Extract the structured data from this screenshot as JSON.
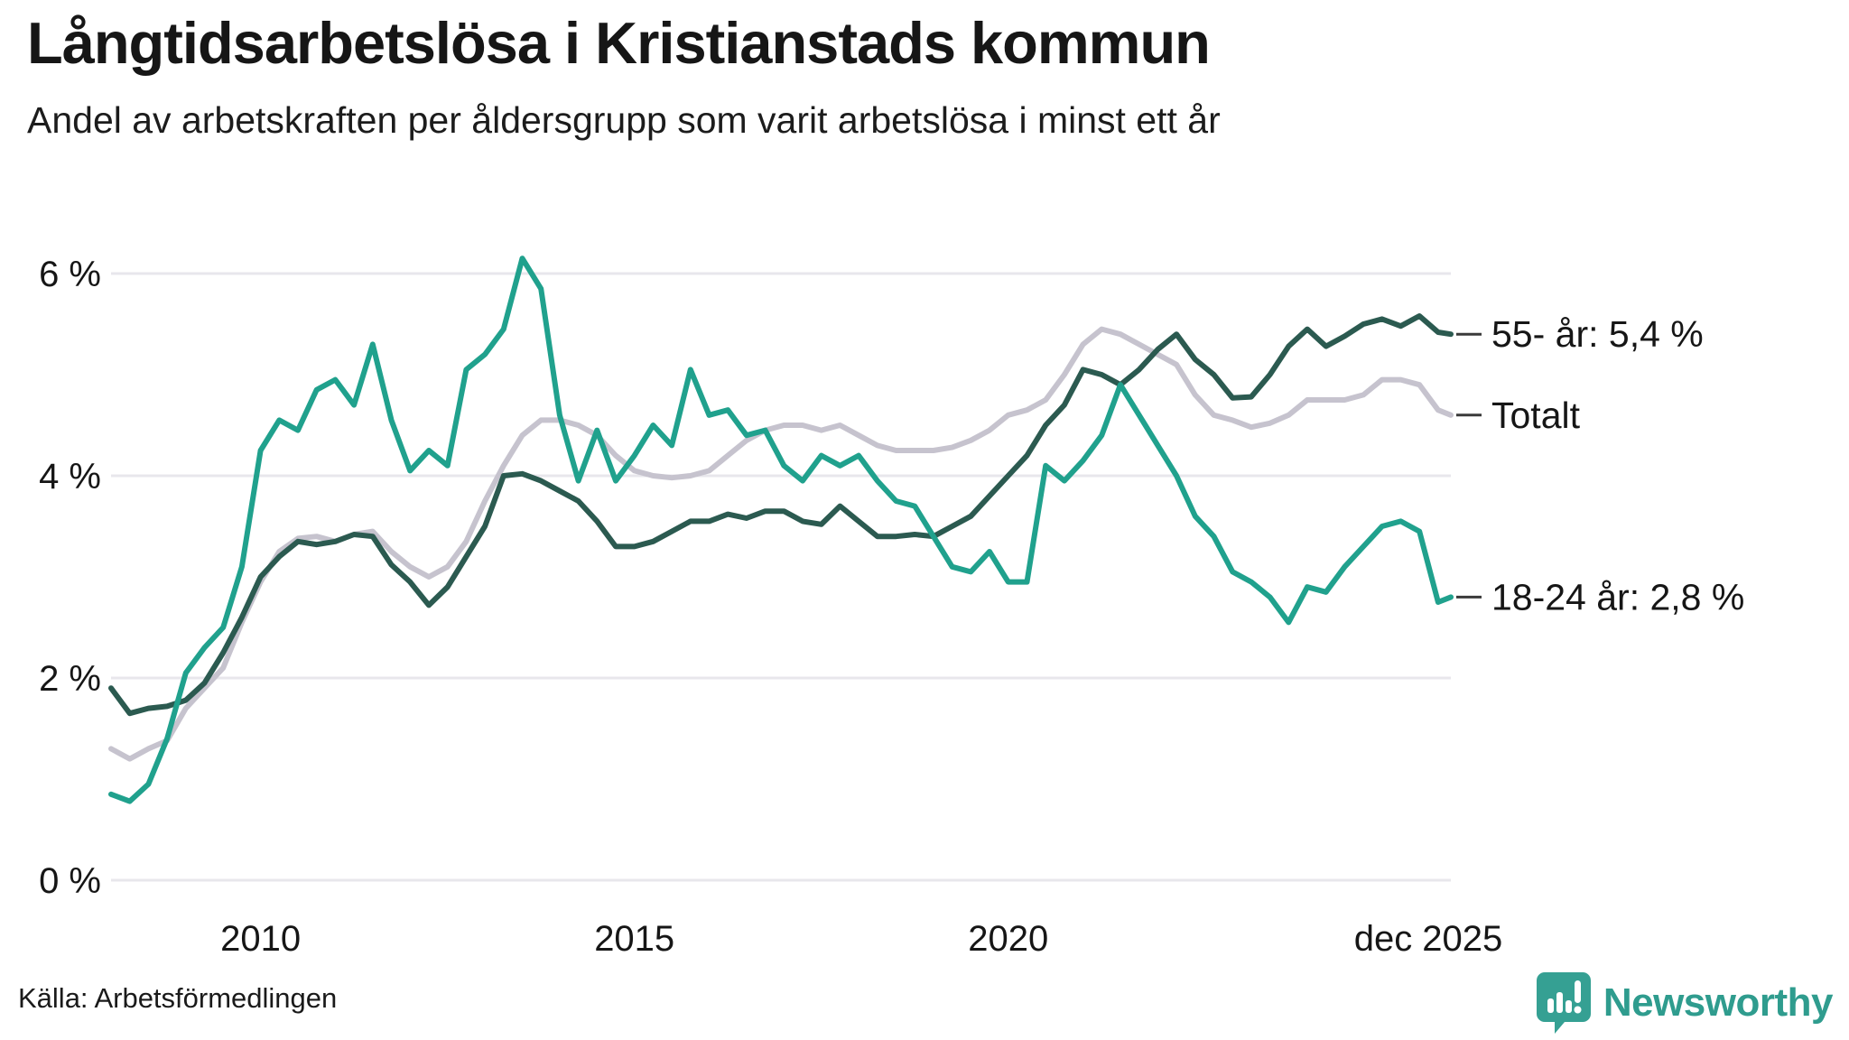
{
  "header": {
    "title": "Långtidsarbetslösa i Kristianstads kommun",
    "subtitle": "Andel av arbetskraften per åldersgrupp som varit arbetslösa i minst ett år"
  },
  "footer": {
    "source": "Källa: Arbetsförmedlingen",
    "brand": "Newsworthy"
  },
  "colors": {
    "teal": "#20a18d",
    "dark_green": "#2b5a50",
    "gray": "#c6c3ce",
    "gridline": "#e8e7ec",
    "text": "#161616",
    "brand_teal": "#2f9c8e",
    "bubble_teal": "#35a093"
  },
  "chart_data": {
    "type": "line",
    "title": "Långtidsarbetslösa i Kristianstads kommun",
    "subtitle": "Andel av arbetskraften per åldersgrupp som varit arbetslösa i minst ett år",
    "xlabel": "",
    "ylabel": "",
    "ylim": [
      0,
      6.5
    ],
    "xlim": [
      2008.0,
      2025.92
    ],
    "grid": "horizontal",
    "legend_position": "right-annotations",
    "x_unit": "year (monthly data, jan 2008 – dec 2025)",
    "yticks": [
      {
        "value": 0,
        "label": "0 %"
      },
      {
        "value": 2,
        "label": "2 %"
      },
      {
        "value": 4,
        "label": "4 %"
      },
      {
        "value": 6,
        "label": "6 %"
      }
    ],
    "xticks": [
      {
        "value": 2010,
        "label": "2010"
      },
      {
        "value": 2015,
        "label": "2015"
      },
      {
        "value": 2020,
        "label": "2020"
      },
      {
        "value": 2025.92,
        "label": "dec 2025",
        "last": true
      }
    ],
    "x": [
      2008.0,
      2008.25,
      2008.5,
      2008.75,
      2009.0,
      2009.25,
      2009.5,
      2009.75,
      2010.0,
      2010.25,
      2010.5,
      2010.75,
      2011.0,
      2011.25,
      2011.5,
      2011.75,
      2012.0,
      2012.25,
      2012.5,
      2012.75,
      2013.0,
      2013.25,
      2013.5,
      2013.75,
      2014.0,
      2014.25,
      2014.5,
      2014.75,
      2015.0,
      2015.25,
      2015.5,
      2015.75,
      2016.0,
      2016.25,
      2016.5,
      2016.75,
      2017.0,
      2017.25,
      2017.5,
      2017.75,
      2018.0,
      2018.25,
      2018.5,
      2018.75,
      2019.0,
      2019.25,
      2019.5,
      2019.75,
      2020.0,
      2020.25,
      2020.5,
      2020.75,
      2021.0,
      2021.25,
      2021.5,
      2021.75,
      2022.0,
      2022.25,
      2022.5,
      2022.75,
      2023.0,
      2023.25,
      2023.5,
      2023.75,
      2024.0,
      2024.25,
      2024.5,
      2024.75,
      2025.0,
      2025.25,
      2025.5,
      2025.75,
      2025.92
    ],
    "series": [
      {
        "name": "Totalt",
        "color_key": "gray",
        "end_label": "Totalt",
        "end_value": 4.6,
        "values": [
          1.3,
          1.2,
          1.3,
          1.38,
          1.7,
          1.9,
          2.1,
          2.55,
          2.95,
          3.25,
          3.38,
          3.4,
          3.35,
          3.42,
          3.45,
          3.25,
          3.1,
          3.0,
          3.1,
          3.35,
          3.75,
          4.1,
          4.4,
          4.55,
          4.55,
          4.5,
          4.4,
          4.2,
          4.05,
          4.0,
          3.98,
          4.0,
          4.05,
          4.2,
          4.35,
          4.45,
          4.5,
          4.5,
          4.45,
          4.5,
          4.4,
          4.3,
          4.25,
          4.25,
          4.25,
          4.28,
          4.35,
          4.45,
          4.6,
          4.65,
          4.75,
          5.0,
          5.3,
          5.45,
          5.4,
          5.3,
          5.2,
          5.1,
          4.8,
          4.6,
          4.55,
          4.48,
          4.52,
          4.6,
          4.75,
          4.75,
          4.75,
          4.8,
          4.95,
          4.95,
          4.9,
          4.65,
          4.6
        ]
      },
      {
        "name": "55- år",
        "color_key": "dark_green",
        "end_label": "55- år: 5,4 %",
        "end_value": 5.4,
        "values": [
          1.9,
          1.65,
          1.7,
          1.72,
          1.78,
          1.95,
          2.25,
          2.6,
          3.0,
          3.2,
          3.35,
          3.32,
          3.35,
          3.42,
          3.4,
          3.12,
          2.95,
          2.72,
          2.9,
          3.2,
          3.5,
          4.0,
          4.02,
          3.95,
          3.85,
          3.75,
          3.55,
          3.3,
          3.3,
          3.35,
          3.45,
          3.55,
          3.55,
          3.62,
          3.58,
          3.65,
          3.65,
          3.55,
          3.52,
          3.7,
          3.55,
          3.4,
          3.4,
          3.42,
          3.4,
          3.5,
          3.6,
          3.8,
          4.0,
          4.2,
          4.5,
          4.7,
          5.05,
          5.0,
          4.9,
          5.05,
          5.25,
          5.4,
          5.15,
          5.0,
          4.77,
          4.78,
          5.0,
          5.28,
          5.45,
          5.28,
          5.38,
          5.5,
          5.55,
          5.48,
          5.58,
          5.42,
          5.4
        ]
      },
      {
        "name": "18-24 år",
        "color_key": "teal",
        "end_label": "18-24 år: 2,8 %",
        "end_value": 2.8,
        "values": [
          0.85,
          0.78,
          0.95,
          1.4,
          2.05,
          2.3,
          2.5,
          3.1,
          4.25,
          4.55,
          4.45,
          4.85,
          4.95,
          4.7,
          5.3,
          4.55,
          4.05,
          4.25,
          4.1,
          5.05,
          5.2,
          5.45,
          6.15,
          5.85,
          4.6,
          3.95,
          4.45,
          3.95,
          4.2,
          4.5,
          4.3,
          5.05,
          4.6,
          4.65,
          4.4,
          4.45,
          4.1,
          3.95,
          4.2,
          4.1,
          4.2,
          3.95,
          3.75,
          3.7,
          3.4,
          3.1,
          3.05,
          3.25,
          2.95,
          2.95,
          4.1,
          3.95,
          4.15,
          4.4,
          4.9,
          4.6,
          4.3,
          4.0,
          3.6,
          3.4,
          3.05,
          2.95,
          2.8,
          2.55,
          2.9,
          2.85,
          3.1,
          3.3,
          3.5,
          3.55,
          3.45,
          2.75,
          2.8
        ]
      }
    ]
  }
}
